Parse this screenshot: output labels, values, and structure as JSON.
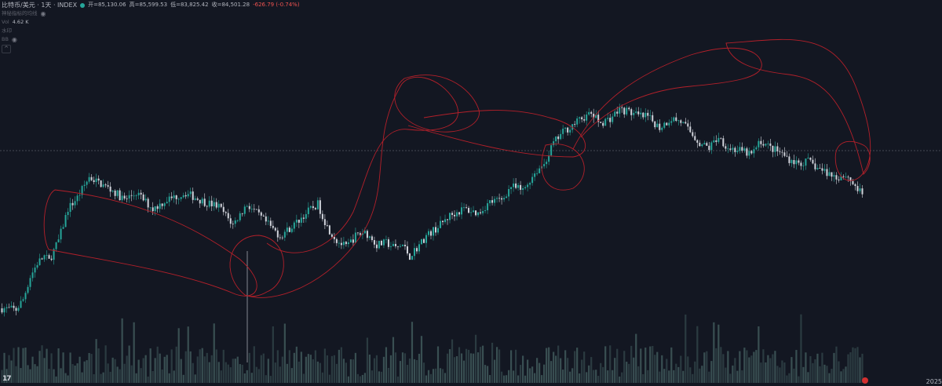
{
  "legend": {
    "symbol": "比特币/美元 · 1天 · INDEX",
    "open": "开=85,130.06",
    "high": "高=85,599.53",
    "low": "低=83,825.42",
    "close": "收=84,501.28",
    "change": "-626.79 (-0.74%)",
    "indicator_row": "神秘指标的均线",
    "vol_label": "Vol",
    "vol_value": "4.62 K",
    "row3": "水印",
    "row4": "BB",
    "collapse": "^"
  },
  "xaxis_label": "2025",
  "logo": "17",
  "colors": {
    "background": "#131722",
    "up": "#26a69a",
    "down": "#d1d4dc",
    "volume": "#5a7d7a",
    "annotation": "#b3202a",
    "price_line": "#787b86"
  },
  "chart_data": {
    "type": "candlestick",
    "x_unit": "day",
    "candle_count": 366,
    "key_levels": {
      "current_close": 84501.28
    },
    "path_points": [
      [
        0,
        36500
      ],
      [
        6,
        36200
      ],
      [
        9,
        38500
      ],
      [
        12,
        43500
      ],
      [
        15,
        46500
      ],
      [
        18,
        48000
      ],
      [
        20,
        47000
      ],
      [
        24,
        51500
      ],
      [
        28,
        58500
      ],
      [
        32,
        61000
      ],
      [
        37,
        65500
      ],
      [
        42,
        64000
      ],
      [
        47,
        62500
      ],
      [
        52,
        60500
      ],
      [
        57,
        62000
      ],
      [
        64,
        58500
      ],
      [
        70,
        60500
      ],
      [
        78,
        62000
      ],
      [
        86,
        60000
      ],
      [
        92,
        59000
      ],
      [
        98,
        55000
      ],
      [
        104,
        59500
      ],
      [
        110,
        56500
      ],
      [
        118,
        52500
      ],
      [
        124,
        55000
      ],
      [
        130,
        58000
      ],
      [
        134,
        59500
      ],
      [
        138,
        54500
      ],
      [
        142,
        51500
      ],
      [
        146,
        50000
      ],
      [
        150,
        52500
      ],
      [
        154,
        53500
      ],
      [
        159,
        50500
      ],
      [
        163,
        51000
      ],
      [
        167,
        49800
      ],
      [
        170,
        50500
      ],
      [
        173,
        48000
      ],
      [
        177,
        50500
      ],
      [
        180,
        52500
      ],
      [
        185,
        54500
      ],
      [
        190,
        57000
      ],
      [
        196,
        58500
      ],
      [
        202,
        57500
      ],
      [
        207,
        60000
      ],
      [
        212,
        60500
      ],
      [
        216,
        63500
      ],
      [
        221,
        62500
      ],
      [
        226,
        66500
      ],
      [
        230,
        68500
      ],
      [
        234,
        73000
      ],
      [
        238,
        75500
      ],
      [
        242,
        77000
      ],
      [
        246,
        78500
      ],
      [
        250,
        79500
      ],
      [
        254,
        77500
      ],
      [
        258,
        78500
      ],
      [
        262,
        80500
      ],
      [
        266,
        80000
      ],
      [
        270,
        79000
      ],
      [
        274,
        78800
      ],
      [
        279,
        76500
      ],
      [
        284,
        78500
      ],
      [
        288,
        77800
      ],
      [
        292,
        75500
      ],
      [
        296,
        73000
      ],
      [
        300,
        72000
      ],
      [
        304,
        74500
      ],
      [
        308,
        72000
      ],
      [
        312,
        71500
      ],
      [
        318,
        70500
      ],
      [
        322,
        73500
      ],
      [
        326,
        72000
      ],
      [
        330,
        71000
      ],
      [
        334,
        69500
      ],
      [
        338,
        68500
      ],
      [
        342,
        69000
      ],
      [
        346,
        67500
      ],
      [
        350,
        66500
      ],
      [
        354,
        65500
      ],
      [
        358,
        66000
      ],
      [
        362,
        63500
      ],
      [
        365,
        61500
      ]
    ],
    "annotations": [
      {
        "shape": "ellipse",
        "label": ""
      },
      {
        "shape": "ellipse",
        "label": ""
      },
      {
        "shape": "ellipse",
        "label": ""
      },
      {
        "shape": "ellipse",
        "label": ""
      },
      {
        "shape": "ellipse",
        "label": ""
      },
      {
        "shape": "ellipse",
        "label": ""
      },
      {
        "shape": "ellipse",
        "label": ""
      },
      {
        "shape": "ellipse",
        "label": ""
      }
    ]
  }
}
